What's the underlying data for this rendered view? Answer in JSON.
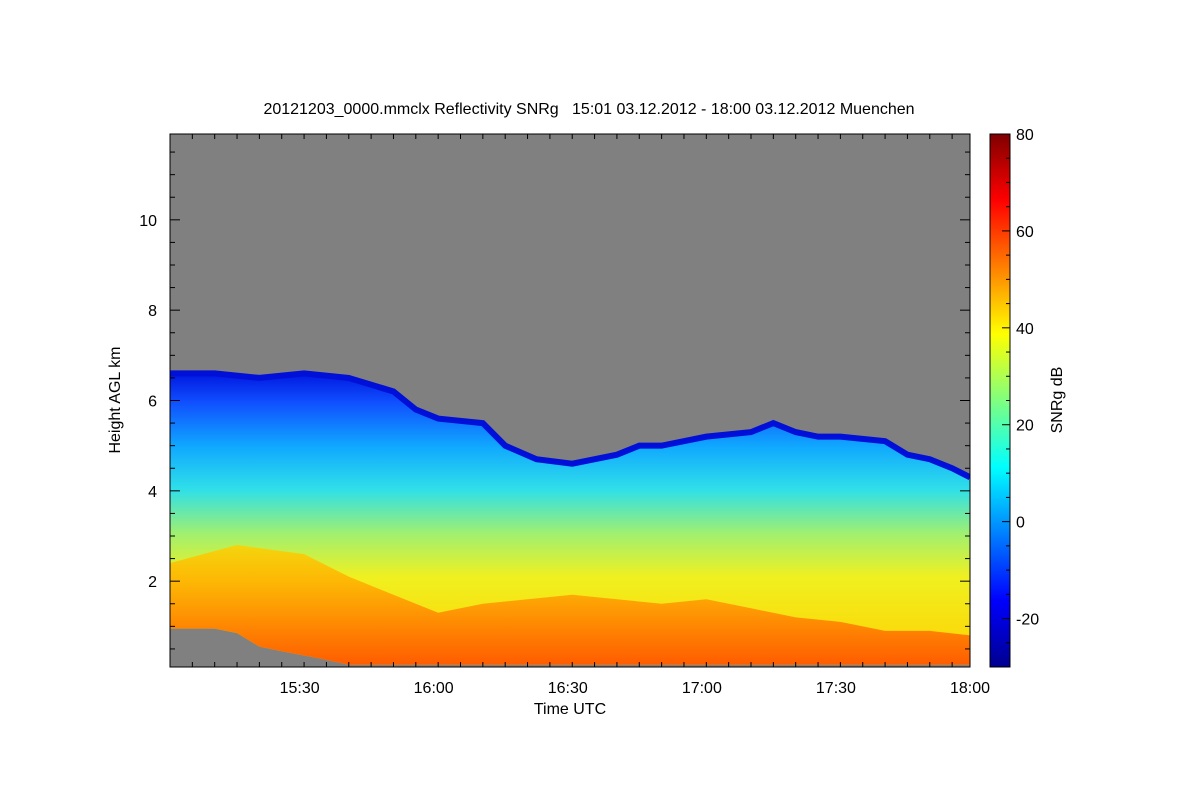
{
  "chart_data": {
    "type": "heatmap",
    "title": "20121203_0000.mmclx Reflectivity SNRg   15:01 03.12.2012 - 18:00 03.12.2012 Muenchen",
    "xlabel": "Time UTC",
    "ylabel": "Height AGL km",
    "colorbar_label": "SNRg dB",
    "x_range": [
      "15:01",
      "18:00"
    ],
    "x_ticks": [
      "15:30",
      "16:00",
      "16:30",
      "17:00",
      "17:30",
      "18:00"
    ],
    "y_range": [
      0.1,
      11.9
    ],
    "y_ticks": [
      2,
      4,
      6,
      8,
      10
    ],
    "color_range": [
      -30,
      80
    ],
    "color_ticks": [
      -20,
      0,
      20,
      40,
      60,
      80
    ],
    "colormap": "jet",
    "background_color": "#808080",
    "cloud_top_km": [
      [
        0,
        6.6
      ],
      [
        10,
        6.6
      ],
      [
        20,
        6.5
      ],
      [
        30,
        6.6
      ],
      [
        40,
        6.5
      ],
      [
        50,
        6.2
      ],
      [
        55,
        5.8
      ],
      [
        60,
        5.6
      ],
      [
        70,
        5.5
      ],
      [
        75,
        5.0
      ],
      [
        82,
        4.7
      ],
      [
        90,
        4.6
      ],
      [
        100,
        4.8
      ],
      [
        105,
        5.0
      ],
      [
        110,
        5.0
      ],
      [
        120,
        5.2
      ],
      [
        130,
        5.3
      ],
      [
        135,
        5.5
      ],
      [
        140,
        5.3
      ],
      [
        145,
        5.2
      ],
      [
        150,
        5.2
      ],
      [
        160,
        5.1
      ],
      [
        165,
        4.8
      ],
      [
        170,
        4.7
      ],
      [
        175,
        4.5
      ],
      [
        179,
        4.3
      ]
    ],
    "cloud_base_km": [
      [
        0,
        0.95
      ],
      [
        10,
        0.95
      ],
      [
        15,
        0.85
      ],
      [
        20,
        0.55
      ],
      [
        25,
        0.45
      ],
      [
        33,
        0.3
      ],
      [
        40,
        0.15
      ],
      [
        180,
        0.15
      ]
    ],
    "strong_echo_top_km": [
      [
        0,
        2.4
      ],
      [
        15,
        2.8
      ],
      [
        30,
        2.6
      ],
      [
        40,
        2.1
      ],
      [
        50,
        1.7
      ],
      [
        60,
        1.3
      ],
      [
        70,
        1.5
      ],
      [
        80,
        1.6
      ],
      [
        90,
        1.7
      ],
      [
        100,
        1.6
      ],
      [
        110,
        1.5
      ],
      [
        120,
        1.6
      ],
      [
        130,
        1.4
      ],
      [
        140,
        1.2
      ],
      [
        150,
        1.1
      ],
      [
        160,
        0.9
      ],
      [
        170,
        0.9
      ],
      [
        179,
        0.8
      ]
    ]
  }
}
